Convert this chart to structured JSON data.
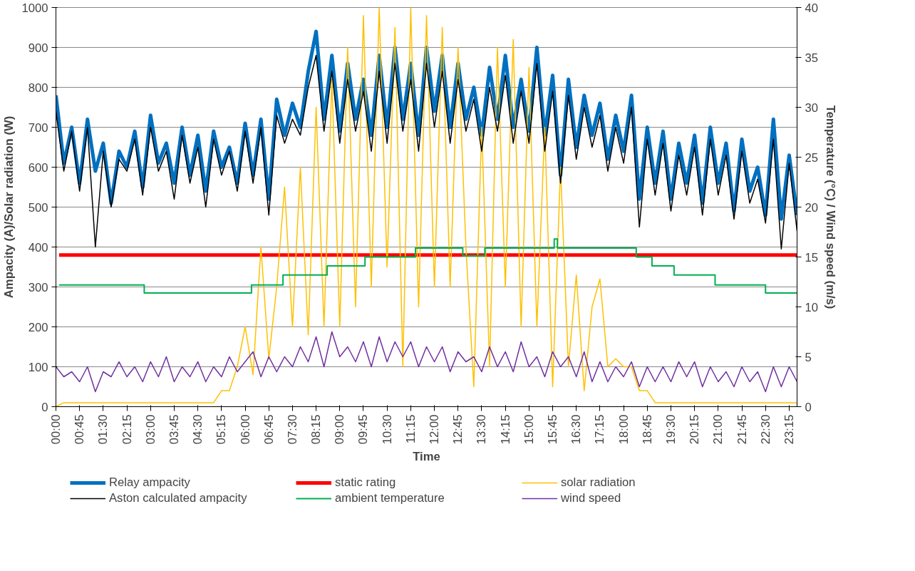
{
  "chart_data": {
    "type": "line",
    "xlabel": "Time",
    "ylabel": "Ampacity (A)/Solar radiation (W)",
    "y2label": "Temperature (°C) / Wind speed (m/s)",
    "xlim": [
      0,
      23.5
    ],
    "ylim": [
      0,
      1000
    ],
    "y2lim": [
      0,
      40
    ],
    "yticks": [
      0,
      100,
      200,
      300,
      400,
      500,
      600,
      700,
      800,
      900,
      1000
    ],
    "y2ticks": [
      0,
      5,
      10,
      15,
      20,
      25,
      30,
      35,
      40
    ],
    "xticks": [
      {
        "value": 0,
        "label": "00:00"
      },
      {
        "value": 0.75,
        "label": "00:45"
      },
      {
        "value": 1.5,
        "label": "01:30"
      },
      {
        "value": 2.25,
        "label": "02:15"
      },
      {
        "value": 3,
        "label": "03:00"
      },
      {
        "value": 3.75,
        "label": "03:45"
      },
      {
        "value": 4.5,
        "label": "04:30"
      },
      {
        "value": 5.25,
        "label": "05:15"
      },
      {
        "value": 6,
        "label": "06:00"
      },
      {
        "value": 6.75,
        "label": "06:45"
      },
      {
        "value": 7.5,
        "label": "07:30"
      },
      {
        "value": 8.25,
        "label": "08:15"
      },
      {
        "value": 9,
        "label": "09:00"
      },
      {
        "value": 9.75,
        "label": "09:45"
      },
      {
        "value": 10.5,
        "label": "10:30"
      },
      {
        "value": 11.25,
        "label": "11:15"
      },
      {
        "value": 12,
        "label": "12:00"
      },
      {
        "value": 12.75,
        "label": "12:45"
      },
      {
        "value": 13.5,
        "label": "13:30"
      },
      {
        "value": 14.25,
        "label": "14:15"
      },
      {
        "value": 15,
        "label": "15:00"
      },
      {
        "value": 15.75,
        "label": "15:45"
      },
      {
        "value": 16.5,
        "label": "16:30"
      },
      {
        "value": 17.25,
        "label": "17:15"
      },
      {
        "value": 18,
        "label": "18:00"
      },
      {
        "value": 18.75,
        "label": "18:45"
      },
      {
        "value": 19.5,
        "label": "19:30"
      },
      {
        "value": 20.25,
        "label": "20:15"
      },
      {
        "value": 21,
        "label": "21:00"
      },
      {
        "value": 21.75,
        "label": "21:45"
      },
      {
        "value": 22.5,
        "label": "22:30"
      },
      {
        "value": 23.25,
        "label": "23:15"
      }
    ],
    "x": [
      0,
      0.25,
      0.5,
      0.75,
      1,
      1.25,
      1.5,
      1.75,
      2,
      2.25,
      2.5,
      2.75,
      3,
      3.25,
      3.5,
      3.75,
      4,
      4.25,
      4.5,
      4.75,
      5,
      5.25,
      5.5,
      5.75,
      6,
      6.25,
      6.5,
      6.75,
      7,
      7.25,
      7.5,
      7.75,
      8,
      8.25,
      8.5,
      8.75,
      9,
      9.25,
      9.5,
      9.75,
      10,
      10.25,
      10.5,
      10.75,
      11,
      11.25,
      11.5,
      11.75,
      12,
      12.25,
      12.5,
      12.75,
      13,
      13.25,
      13.5,
      13.75,
      14,
      14.25,
      14.5,
      14.75,
      15,
      15.25,
      15.5,
      15.75,
      16,
      16.25,
      16.5,
      16.75,
      17,
      17.25,
      17.5,
      17.75,
      18,
      18.25,
      18.5,
      18.75,
      19,
      19.25,
      19.5,
      19.75,
      20,
      20.25,
      20.5,
      20.75,
      21,
      21.25,
      21.5,
      21.75,
      22,
      22.25,
      22.5,
      22.75,
      23,
      23.25,
      23.5
    ],
    "grid": "y",
    "legend": "bottom",
    "line_style": "solid",
    "series": [
      {
        "name": "Relay ampacity",
        "color": "#0070c0",
        "values": [
          780,
          610,
          700,
          560,
          720,
          590,
          660,
          510,
          640,
          600,
          690,
          550,
          730,
          610,
          660,
          560,
          700,
          580,
          680,
          540,
          690,
          600,
          650,
          560,
          710,
          580,
          720,
          520,
          770,
          680,
          760,
          700,
          840,
          940,
          720,
          880,
          690,
          860,
          720,
          820,
          680,
          880,
          700,
          900,
          720,
          860,
          680,
          900,
          740,
          880,
          700,
          860,
          720,
          800,
          680,
          850,
          720,
          880,
          700,
          820,
          690,
          900,
          680,
          830,
          580,
          820,
          650,
          780,
          680,
          760,
          620,
          730,
          640,
          780,
          520,
          700,
          560,
          690,
          520,
          660,
          560,
          680,
          510,
          700,
          560,
          660,
          490,
          670,
          540,
          600,
          480,
          720,
          470,
          630,
          480
        ]
      },
      {
        "name": "static rating",
        "color": "#ff0000",
        "x": [
          0.1,
          23.5
        ],
        "values": [
          380,
          380
        ]
      },
      {
        "name": "solar radiation",
        "color": "#ffc000",
        "values": [
          0,
          10,
          10,
          10,
          10,
          10,
          10,
          10,
          10,
          10,
          10,
          10,
          10,
          10,
          10,
          10,
          10,
          10,
          10,
          10,
          10,
          40,
          40,
          100,
          200,
          80,
          400,
          120,
          300,
          550,
          200,
          600,
          180,
          750,
          200,
          820,
          200,
          900,
          250,
          980,
          300,
          1000,
          350,
          950,
          100,
          1000,
          250,
          980,
          300,
          950,
          300,
          900,
          400,
          50,
          700,
          100,
          900,
          300,
          920,
          200,
          850,
          200,
          700,
          50,
          600,
          100,
          330,
          40,
          250,
          320,
          100,
          120,
          100,
          100,
          40,
          40,
          10,
          10,
          10,
          10,
          10,
          10,
          10,
          10,
          10,
          10,
          10,
          10,
          10,
          10,
          10,
          10,
          10,
          10,
          10
        ]
      },
      {
        "name": "Aston calculated ampacity",
        "color": "#000000",
        "values": [
          740,
          590,
          690,
          540,
          700,
          400,
          640,
          500,
          620,
          590,
          670,
          530,
          700,
          590,
          640,
          520,
          680,
          560,
          650,
          500,
          670,
          580,
          640,
          540,
          690,
          560,
          700,
          480,
          730,
          660,
          720,
          680,
          800,
          880,
          690,
          840,
          660,
          820,
          690,
          790,
          640,
          840,
          660,
          860,
          690,
          820,
          640,
          860,
          700,
          840,
          660,
          820,
          690,
          770,
          640,
          800,
          690,
          830,
          660,
          790,
          660,
          860,
          640,
          790,
          560,
          780,
          620,
          750,
          650,
          730,
          590,
          700,
          610,
          750,
          450,
          670,
          530,
          660,
          490,
          630,
          530,
          650,
          480,
          670,
          530,
          630,
          470,
          640,
          510,
          570,
          460,
          670,
          395,
          610,
          440
        ]
      },
      {
        "name": "ambient temperature",
        "color": "#00b050",
        "type": "step",
        "axis": "y2",
        "x": [
          0.1,
          2.8,
          6.2,
          7.2,
          8.6,
          9.8,
          11.4,
          12.9,
          13.6,
          15.8,
          15.9,
          18.4,
          18.9,
          19.6,
          20.9,
          22.5,
          23.5
        ],
        "values": [
          12.2,
          11.4,
          12.2,
          13.2,
          14.1,
          15,
          15.9,
          15.1,
          15.9,
          16.8,
          15.9,
          15,
          14.1,
          13.2,
          12.2,
          11.4,
          11.4
        ]
      },
      {
        "name": "wind speed",
        "color": "#7030a0",
        "axis": "y2",
        "values": [
          4,
          3,
          3.5,
          2.5,
          4,
          1.5,
          3.5,
          3,
          4.5,
          3,
          4,
          2.5,
          4.5,
          3,
          5,
          2.5,
          4,
          3,
          4.5,
          2.5,
          4,
          3,
          5,
          3.5,
          4.5,
          5.5,
          3,
          5,
          3.5,
          5,
          4,
          6,
          4.5,
          7,
          4,
          7.5,
          5,
          6,
          4.5,
          6.5,
          4,
          7,
          4.5,
          6.5,
          5,
          6.5,
          4,
          6,
          4.5,
          6,
          3.5,
          5.5,
          4.5,
          5,
          3.5,
          6,
          4,
          5.5,
          3.5,
          6.5,
          4,
          5,
          3,
          5.5,
          4,
          5,
          3,
          5.5,
          2.5,
          4.5,
          2.5,
          4,
          3,
          4.5,
          2,
          4,
          2.5,
          4,
          2.5,
          4.5,
          3,
          4.5,
          2,
          4,
          2.5,
          3.5,
          2,
          4,
          2.5,
          3.5,
          1.5,
          4,
          2,
          4,
          2.5
        ]
      }
    ]
  }
}
